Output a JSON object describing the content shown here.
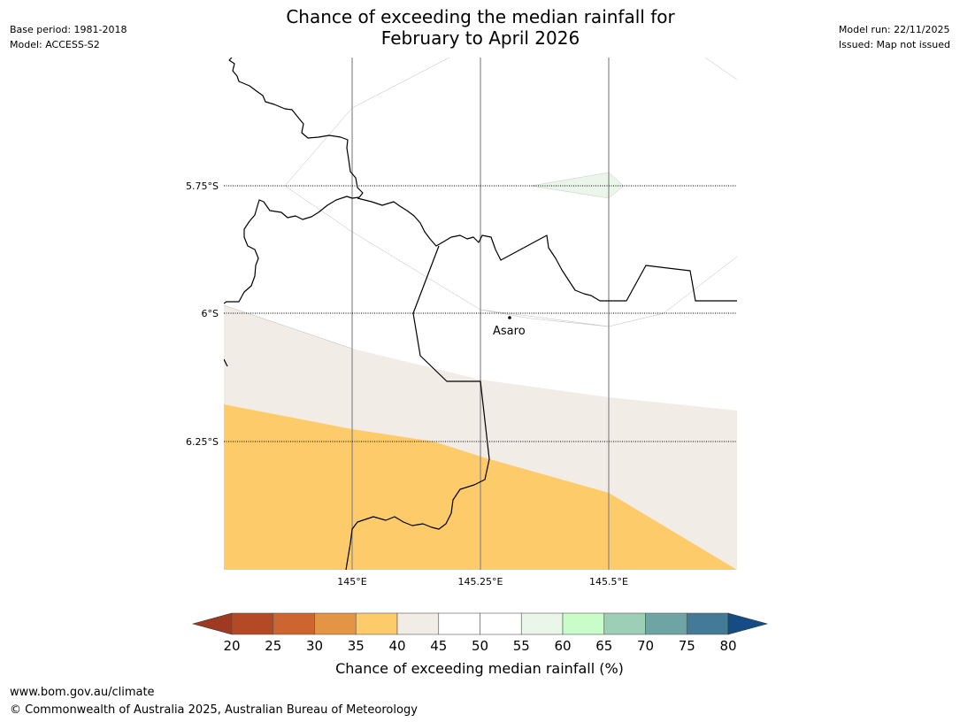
{
  "header": {
    "title_line1": "Chance of exceeding the median rainfall for",
    "title_line2": "February to April 2026",
    "base_period": "Base period: 1981-2018",
    "model": "Model: ACCESS-S2",
    "model_run": "Model run: 22/11/2025",
    "issued": "Issued: Map not issued"
  },
  "map": {
    "lat_labels": [
      "5.75°S",
      "6°S",
      "6.25°S"
    ],
    "lon_labels": [
      "145°E",
      "145.25°E",
      "145.5°E"
    ],
    "town": {
      "name": "Asaro"
    },
    "probability_zones": [
      {
        "range": "35-40",
        "color": "#FECB6A"
      },
      {
        "range": "40-45",
        "color": "#F1ECE6"
      },
      {
        "range": "45-55",
        "color": "#FFFFFF"
      },
      {
        "range": "55-60",
        "color": "#EAF6EA"
      }
    ]
  },
  "colorbar": {
    "title": "Chance of exceeding median rainfall (%)",
    "ticks": [
      "20",
      "25",
      "30",
      "35",
      "40",
      "45",
      "50",
      "55",
      "60",
      "65",
      "70",
      "75",
      "80"
    ],
    "under_color": "#9E3A22",
    "over_color": "#154C83",
    "colors": [
      "#B44A25",
      "#CC6530",
      "#E39445",
      "#FECB6A",
      "#F1ECE6",
      "#FFFFFF",
      "#FFFFFF",
      "#EAF6EA",
      "#C8FCC8",
      "#9CCFB6",
      "#6FA4A4",
      "#427A97"
    ]
  },
  "footer": {
    "url": "www.bom.gov.au/climate",
    "copyright": "© Commonwealth of Australia 2025, Australian Bureau of Meteorology"
  }
}
